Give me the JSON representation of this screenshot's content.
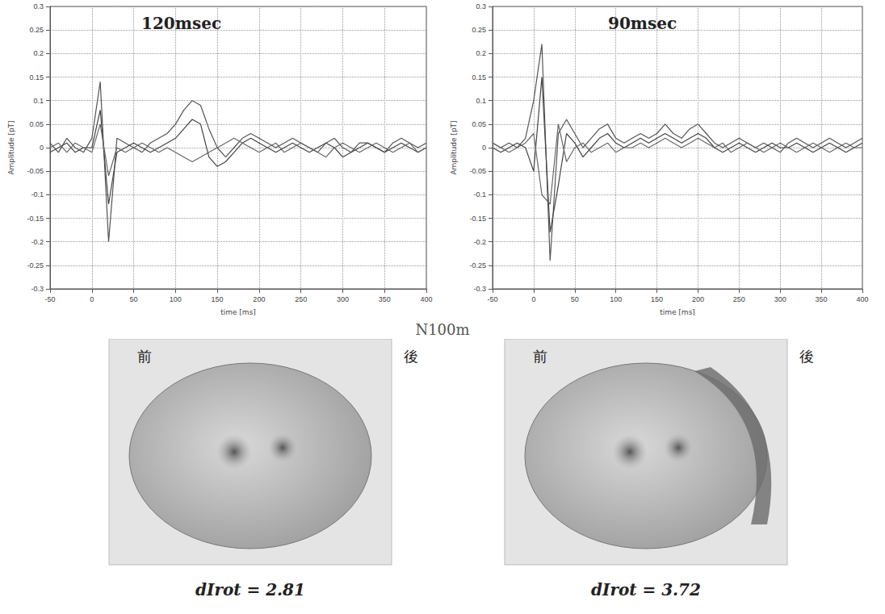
{
  "chart_data": [
    {
      "type": "line",
      "title": "120msec",
      "xlabel": "time [ms]",
      "ylabel": "Amplitude [pT]",
      "grid": true,
      "x": [
        -50,
        -40,
        -30,
        -20,
        -10,
        0,
        10,
        20,
        30,
        40,
        50,
        60,
        70,
        80,
        90,
        100,
        110,
        120,
        130,
        140,
        150,
        160,
        170,
        180,
        190,
        200,
        210,
        220,
        230,
        240,
        250,
        260,
        270,
        280,
        290,
        300,
        310,
        320,
        330,
        340,
        350,
        360,
        370,
        380,
        390,
        400
      ],
      "xlim": [
        -50,
        400
      ],
      "xticks": [
        -50,
        0,
        50,
        100,
        150,
        200,
        250,
        300,
        350,
        400
      ],
      "ylim": [
        -0.3,
        0.3
      ],
      "yticks": [
        -0.3,
        -0.25,
        -0.2,
        -0.15,
        -0.1,
        -0.05,
        0,
        0.05,
        0.1,
        0.15,
        0.2,
        0.25,
        0.3
      ],
      "series": [
        {
          "color": "#555555",
          "values": [
            0.01,
            -0.01,
            0.02,
            0,
            -0.01,
            0.02,
            0.14,
            -0.2,
            0.02,
            0.01,
            0,
            -0.01,
            0.01,
            0.02,
            0.03,
            0.05,
            0.08,
            0.1,
            0.09,
            0.04,
            0,
            -0.02,
            0,
            0.02,
            0.03,
            0.02,
            0.01,
            0,
            0.01,
            0.02,
            0.01,
            0,
            -0.01,
            0.01,
            0.02,
            0,
            -0.01,
            0.01,
            0.01,
            0,
            -0.01,
            0.01,
            0.02,
            0.01,
            0,
            0.01
          ]
        },
        {
          "color": "#444444",
          "values": [
            -0.01,
            0,
            0.01,
            -0.01,
            0,
            0,
            0.08,
            -0.12,
            -0.01,
            0,
            0.01,
            0,
            -0.01,
            0,
            0.01,
            0.02,
            0.04,
            0.06,
            0.05,
            -0.02,
            -0.04,
            -0.03,
            -0.01,
            0.01,
            0.02,
            0.01,
            0,
            -0.01,
            0,
            0.01,
            0,
            -0.01,
            0,
            0.01,
            0,
            -0.02,
            -0.01,
            0,
            0.01,
            0,
            -0.01,
            0,
            0.01,
            0,
            -0.01,
            0
          ]
        },
        {
          "color": "#666666",
          "values": [
            0,
            0.01,
            -0.01,
            0.01,
            0,
            -0.01,
            0.05,
            -0.06,
            0,
            -0.01,
            0,
            0.01,
            0,
            -0.01,
            0,
            -0.01,
            -0.02,
            -0.03,
            -0.02,
            -0.01,
            0,
            0.01,
            0.02,
            0.01,
            0,
            -0.01,
            0,
            0.01,
            -0.01,
            0,
            0.01,
            0,
            -0.01,
            -0.02,
            0,
            0.01,
            0,
            -0.01,
            0,
            0.01,
            0,
            -0.01,
            0,
            0.01,
            -0.01,
            0
          ]
        }
      ]
    },
    {
      "type": "line",
      "title": "90msec",
      "xlabel": "time [ms]",
      "ylabel": "Amplitude [pT]",
      "grid": true,
      "x": [
        -50,
        -40,
        -30,
        -20,
        -10,
        0,
        10,
        20,
        30,
        40,
        50,
        60,
        70,
        80,
        90,
        100,
        110,
        120,
        130,
        140,
        150,
        160,
        170,
        180,
        190,
        200,
        210,
        220,
        230,
        240,
        250,
        260,
        270,
        280,
        290,
        300,
        310,
        320,
        330,
        340,
        350,
        360,
        370,
        380,
        390,
        400
      ],
      "xlim": [
        -50,
        400
      ],
      "xticks": [
        -50,
        0,
        50,
        100,
        150,
        200,
        250,
        300,
        350,
        400
      ],
      "ylim": [
        -0.3,
        0.3
      ],
      "yticks": [
        -0.3,
        -0.25,
        -0.2,
        -0.15,
        -0.1,
        -0.05,
        0,
        0.05,
        0.1,
        0.15,
        0.2,
        0.25,
        0.3
      ],
      "series": [
        {
          "color": "#555555",
          "values": [
            0.01,
            0,
            0.01,
            0,
            0.02,
            0.1,
            0.22,
            -0.24,
            0.03,
            0.06,
            0.03,
            0,
            0.02,
            0.04,
            0.05,
            0.02,
            0.01,
            0.02,
            0.03,
            0.02,
            0.03,
            0.05,
            0.03,
            0.02,
            0.04,
            0.05,
            0.03,
            0.01,
            0,
            0.01,
            0.02,
            0.01,
            0,
            0.01,
            0,
            -0.01,
            0.01,
            0.02,
            0.01,
            0,
            0.01,
            0.02,
            0.01,
            0,
            0.01,
            0.02
          ]
        },
        {
          "color": "#444444",
          "values": [
            0,
            -0.01,
            0,
            0.01,
            0,
            -0.05,
            0.15,
            -0.18,
            -0.08,
            0.03,
            0.01,
            -0.02,
            0,
            0.02,
            0.03,
            0.01,
            0,
            0.01,
            0.02,
            0.01,
            0.02,
            0.03,
            0.02,
            0.01,
            0.02,
            0.03,
            0.02,
            0,
            -0.01,
            0,
            0.01,
            0,
            -0.01,
            0,
            0.01,
            0,
            0,
            0.01,
            0,
            -0.01,
            0,
            0.01,
            0,
            -0.01,
            0,
            0.01
          ]
        },
        {
          "color": "#666666",
          "values": [
            0.01,
            0,
            -0.01,
            0,
            0.01,
            0.03,
            -0.1,
            -0.12,
            0.05,
            -0.03,
            0,
            0.01,
            -0.01,
            0,
            0.01,
            -0.01,
            0,
            0,
            0.01,
            0,
            0.01,
            0.02,
            0.01,
            0,
            0.01,
            0.02,
            0.01,
            0,
            0.01,
            -0.01,
            0,
            0.01,
            0,
            -0.01,
            0,
            0.01,
            0,
            -0.01,
            0,
            0.01,
            0,
            -0.01,
            0,
            0.01,
            0,
            0
          ]
        }
      ]
    }
  ],
  "center_label": "N100m",
  "head_maps": [
    {
      "front": "前",
      "back": "後",
      "caption": "dIrot = 2.81"
    },
    {
      "front": "前",
      "back": "後",
      "caption": "dIrot = 3.72"
    }
  ]
}
